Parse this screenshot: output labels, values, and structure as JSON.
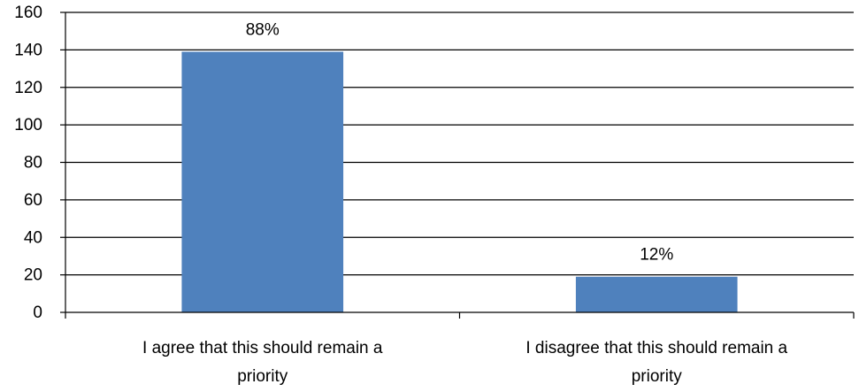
{
  "chart_data": {
    "type": "bar",
    "categories": [
      [
        "I agree that this should remain a",
        "priority"
      ],
      [
        "I disagree that this should remain a",
        "priority"
      ]
    ],
    "values": [
      139,
      19
    ],
    "data_labels": [
      "88%",
      "12%"
    ],
    "ylim": [
      0,
      160
    ],
    "yticks": [
      "0",
      "20",
      "40",
      "60",
      "80",
      "100",
      "120",
      "140",
      "160"
    ],
    "grid": true,
    "legend": "none",
    "bar_color": "#4f81bd",
    "title": "",
    "xlabel": "",
    "ylabel": ""
  }
}
